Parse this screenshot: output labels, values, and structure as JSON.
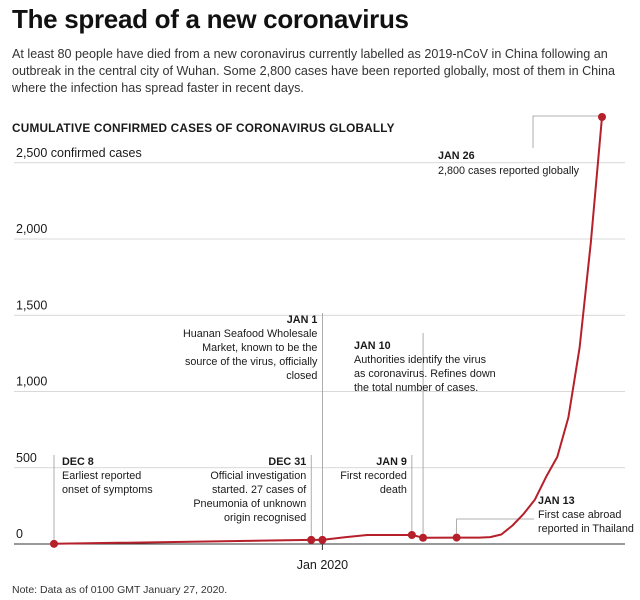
{
  "header": {
    "title": "The spread of a new coronavirus",
    "subtitle": "At least 80 people have died from a new coronavirus currently labelled as 2019-nCoV in China following an outbreak in the central city of Wuhan. Some 2,800 cases have been reported globally, most of them in China where the infection has spread faster in recent days."
  },
  "footer": {
    "note": "Note: Data as of 0100 GMT January 27, 2020."
  },
  "colors": {
    "line": "#b5202a",
    "axis": "#333333",
    "grid": "#cccccc",
    "leader": "#999999"
  },
  "chart_data": {
    "type": "line",
    "title": "CUMULATIVE CONFIRMED CASES OF CORONAVIRUS GLOBALLY",
    "xlabel": "",
    "ylabel": "",
    "x_axis": {
      "start": "2019-12-08",
      "end": "2020-01-26",
      "ticks": [
        {
          "date": "2020-01-01",
          "label": "Jan 2020"
        }
      ]
    },
    "y_axis": {
      "ylim": [
        0,
        2800
      ],
      "ticks": [
        {
          "value": 0,
          "label": "0"
        },
        {
          "value": 500,
          "label": "500"
        },
        {
          "value": 1000,
          "label": "1,000"
        },
        {
          "value": 1500,
          "label": "1,500"
        },
        {
          "value": 2000,
          "label": "2,000"
        },
        {
          "value": 2500,
          "label": "2,500 confirmed cases"
        }
      ]
    },
    "grid": "horizontal",
    "series": [
      {
        "name": "",
        "color": "#b5202a",
        "points": [
          {
            "date": "2019-12-08",
            "value": 1
          },
          {
            "date": "2019-12-31",
            "value": 27
          },
          {
            "date": "2020-01-01",
            "value": 27
          },
          {
            "date": "2020-01-03",
            "value": 44
          },
          {
            "date": "2020-01-05",
            "value": 59
          },
          {
            "date": "2020-01-09",
            "value": 59
          },
          {
            "date": "2020-01-10",
            "value": 41
          },
          {
            "date": "2020-01-13",
            "value": 42
          },
          {
            "date": "2020-01-15",
            "value": 42
          },
          {
            "date": "2020-01-16",
            "value": 45
          },
          {
            "date": "2020-01-17",
            "value": 62
          },
          {
            "date": "2020-01-18",
            "value": 121
          },
          {
            "date": "2020-01-19",
            "value": 198
          },
          {
            "date": "2020-01-20",
            "value": 291
          },
          {
            "date": "2020-01-21",
            "value": 440
          },
          {
            "date": "2020-01-22",
            "value": 571
          },
          {
            "date": "2020-01-23",
            "value": 830
          },
          {
            "date": "2020-01-24",
            "value": 1287
          },
          {
            "date": "2020-01-25",
            "value": 1975
          },
          {
            "date": "2020-01-26",
            "value": 2800
          }
        ]
      }
    ],
    "annotations": [
      {
        "date": "2019-12-08",
        "label": "DEC 8",
        "lines": [
          "Earliest reported",
          "onset of symptoms"
        ],
        "align": "left"
      },
      {
        "date": "2019-12-31",
        "label": "DEC 31",
        "lines": [
          "Official investigation",
          "started. 27 cases of",
          "Pneumonia of unknown",
          "origin recognised"
        ],
        "align": "right"
      },
      {
        "date": "2020-01-01",
        "label": "JAN 1",
        "lines": [
          "Huanan Seafood Wholesale",
          "Market, known to be the",
          "source of the virus, officially",
          "closed"
        ],
        "align": "right"
      },
      {
        "date": "2020-01-09",
        "label": "JAN 9",
        "lines": [
          "First recorded",
          "death"
        ],
        "align": "right"
      },
      {
        "date": "2020-01-10",
        "label": "JAN 10",
        "lines": [
          "Authorities identify the virus",
          "as coronavirus. Refines down",
          "the total number of cases."
        ],
        "align": "left"
      },
      {
        "date": "2020-01-13",
        "label": "JAN 13",
        "lines": [
          "First case abroad",
          "reported in Thailand"
        ],
        "align": "left"
      },
      {
        "date": "2020-01-26",
        "label": "JAN 26",
        "lines": [
          "2,800 cases reported globally"
        ],
        "align": "left"
      }
    ]
  }
}
